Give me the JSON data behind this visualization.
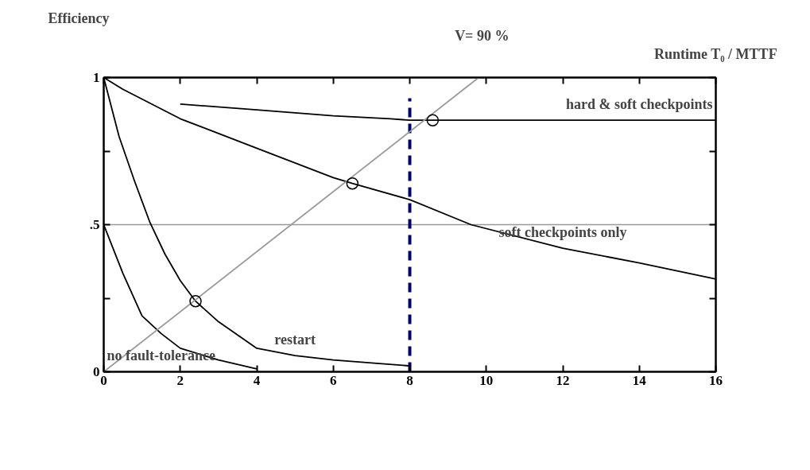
{
  "chart_data": {
    "type": "line",
    "xlabel": "Runtime T₀ / MTTF",
    "ylabel": "Efficiency",
    "xlim": [
      0,
      16
    ],
    "ylim": [
      0,
      1
    ],
    "xticks": [
      0,
      2,
      4,
      6,
      8,
      10,
      12,
      14,
      16
    ],
    "yticks": [
      {
        "value": 0,
        "label": "0"
      },
      {
        "value": 0.25,
        "label": null
      },
      {
        "value": 0.5,
        "label": ".5"
      },
      {
        "value": 0.75,
        "label": null
      },
      {
        "value": 1,
        "label": "1"
      }
    ],
    "grid": false,
    "line_style": "solid",
    "marker": "none",
    "series": [
      {
        "color": "#000000",
        "x": [
          2,
          4,
          6,
          7.5,
          8,
          8.6,
          16
        ],
        "values": [
          0.91,
          0.89,
          0.87,
          0.86,
          0.855,
          0.855,
          0.855
        ]
      },
      {
        "color": "#000000",
        "x": [
          0,
          0.5,
          2,
          4,
          6,
          6.5,
          8,
          9.6,
          12,
          14,
          16
        ],
        "values": [
          1,
          0.96,
          0.86,
          0.76,
          0.66,
          0.64,
          0.585,
          0.5,
          0.42,
          0.37,
          0.315
        ]
      },
      {
        "color": "#000000",
        "x": [
          0,
          0.4,
          0.8,
          1.2,
          1.6,
          2,
          2.4,
          3,
          4,
          5,
          6,
          7,
          8
        ],
        "values": [
          1,
          0.8,
          0.65,
          0.51,
          0.4,
          0.31,
          0.24,
          0.17,
          0.08,
          0.055,
          0.04,
          0.03,
          0.02
        ]
      },
      {
        "color": "#000000",
        "x": [
          0,
          0.5,
          1,
          1.5,
          2,
          3,
          4
        ],
        "values": [
          0.5,
          0.335,
          0.19,
          0.13,
          0.08,
          0.04,
          0.01
        ]
      },
      {
        "color": "#999999",
        "x": [
          0,
          9.8
        ],
        "values": [
          0,
          1
        ]
      },
      {
        "type": "scatter",
        "marker": "circle",
        "color": "#000000",
        "x": [
          2.4,
          6.5,
          8.6
        ],
        "values": [
          0.24,
          0.64,
          0.855
        ]
      }
    ],
    "ref_lines": [
      {
        "axis": "y",
        "value": 0.5,
        "label": null,
        "color": "#999999",
        "line_style": "solid"
      },
      {
        "axis": "x",
        "value": 8,
        "label": null,
        "color": "#000066",
        "line_style": "dashed"
      }
    ],
    "annotations": [
      {
        "text": "hard & soft checkpoints",
        "x": 14,
        "y": 0.855
      },
      {
        "text": "soft checkpoints only",
        "x": 12,
        "y": 0.42
      },
      {
        "text": "restart",
        "x": 5,
        "y": 0.055
      },
      {
        "text": "no fault-tolerance",
        "x": 1.5,
        "y": 0.13
      },
      {
        "text": "V= 90 %",
        "x": 9.8,
        "y": 1
      }
    ]
  }
}
